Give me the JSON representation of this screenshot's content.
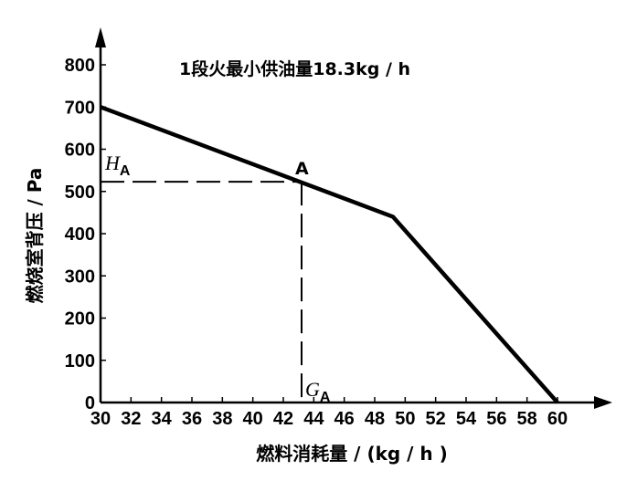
{
  "chart_data": {
    "type": "line",
    "title": "",
    "annotation": "1段火最小供油量18.3kg / h",
    "xlabel": "燃料消耗量 / (kg / h )",
    "ylabel": "燃烧室背压 / Pa",
    "xlim": [
      30,
      60
    ],
    "ylim": [
      0,
      800
    ],
    "xticks": [
      30,
      32,
      34,
      36,
      38,
      40,
      42,
      44,
      46,
      48,
      50,
      52,
      54,
      56,
      58,
      60
    ],
    "yticks": [
      0,
      100,
      200,
      300,
      400,
      500,
      600,
      700,
      800
    ],
    "grid": false,
    "series": [
      {
        "x": [
          30,
          49.2,
          60
        ],
        "y": [
          700,
          440,
          0
        ],
        "color": "#000000"
      }
    ],
    "point_A": {
      "label": "A",
      "x": 43.2,
      "y": 523
    },
    "h_label": {
      "main": "H",
      "sub": "A"
    },
    "g_label": {
      "main": "G",
      "sub": "A"
    }
  }
}
